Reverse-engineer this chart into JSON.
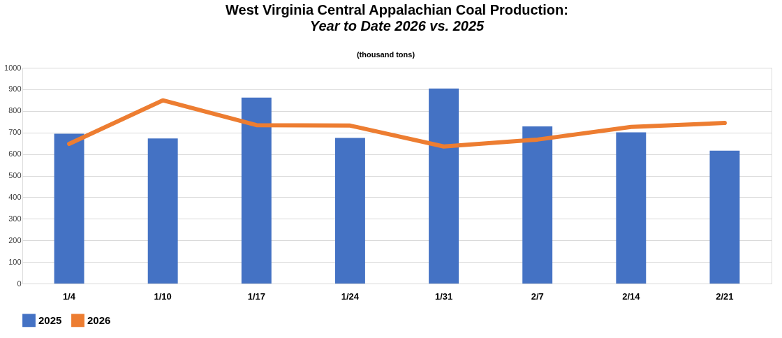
{
  "chart_data": {
    "type": "bar",
    "title": "West Virginia Central Appalachian Coal Production:",
    "subtitle": "Year to Date 2026 vs. 2025",
    "ylabel": "(thousand tons)",
    "categories": [
      "1/4",
      "1/10",
      "1/17",
      "1/24",
      "1/31",
      "2/7",
      "2/14",
      "2/21"
    ],
    "series": [
      {
        "name": "2025",
        "color": "#4472c4",
        "values": [
          694,
          672,
          862,
          675,
          904,
          728,
          701,
          616
        ]
      },
      {
        "name": "2026",
        "type": "line",
        "color": "#ed7d31",
        "values": [
          647,
          849,
          734,
          732,
          635,
          667,
          726,
          744
        ]
      }
    ],
    "ylim": [
      0,
      1000
    ],
    "yticks": [
      0,
      100,
      200,
      300,
      400,
      500,
      600,
      700,
      800,
      900,
      1000
    ],
    "grid": "y",
    "legend": "bottom",
    "marker": "none",
    "line_style": "solid"
  }
}
